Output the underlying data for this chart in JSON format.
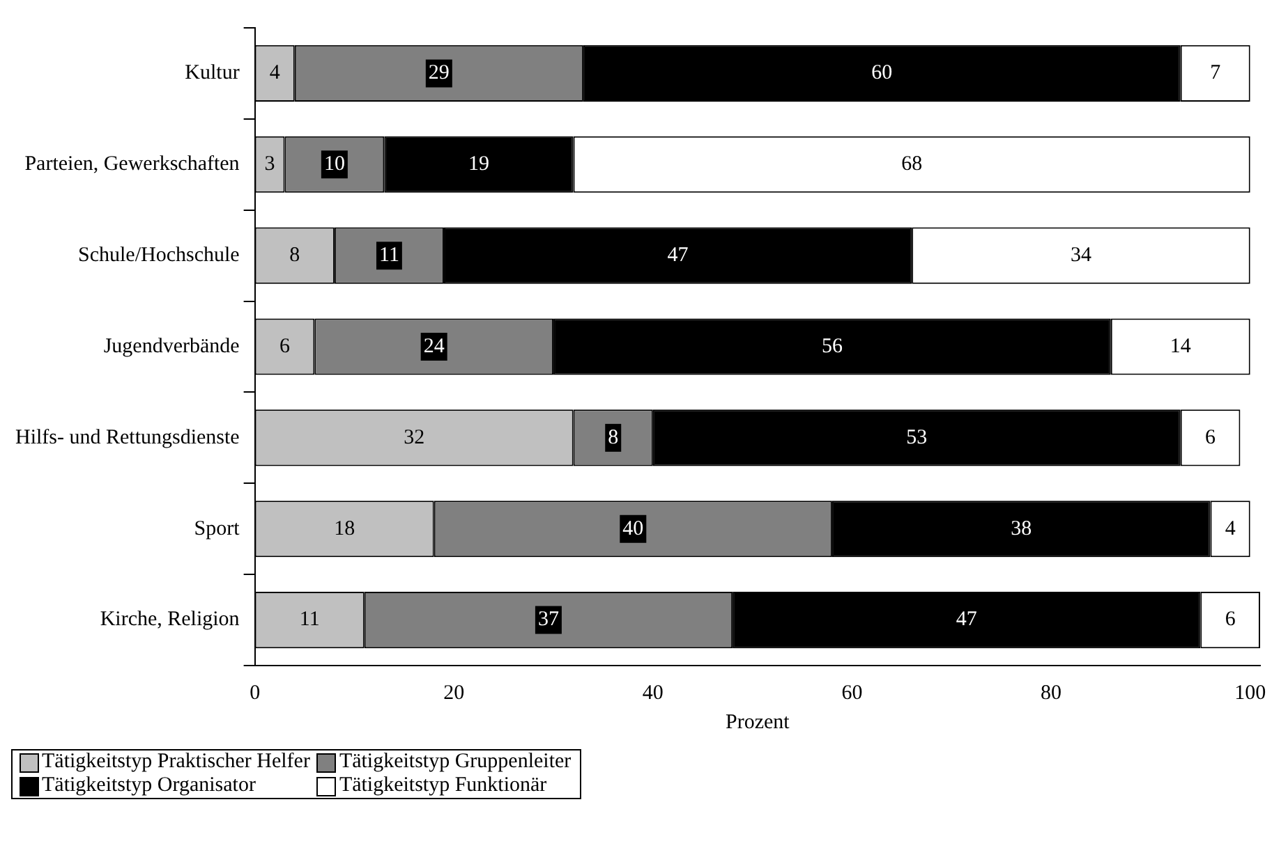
{
  "chart_data": {
    "type": "bar",
    "orientation": "horizontal",
    "stacked": true,
    "xlabel": "Prozent",
    "categories": [
      "Kultur",
      "Parteien, Gewerkschaften",
      "Schule/Hochschule",
      "Jugendverbände",
      "Hilfs- und Rettungsdienste",
      "Sport",
      "Kirche, Religion"
    ],
    "series": [
      {
        "name": "Tätigkeitstyp Praktischer Helfer",
        "color": "#c0c0c0",
        "values": [
          4,
          3,
          8,
          6,
          32,
          18,
          11
        ]
      },
      {
        "name": "Tätigkeitstyp Gruppenleiter",
        "color": "#808080",
        "values": [
          29,
          10,
          11,
          24,
          8,
          40,
          37
        ]
      },
      {
        "name": "Tätigkeitstyp Organisator",
        "color": "#000000",
        "values": [
          60,
          19,
          47,
          56,
          53,
          38,
          47
        ]
      },
      {
        "name": "Tätigkeitstyp Funktionär",
        "color": "#ffffff",
        "values": [
          7,
          68,
          34,
          14,
          6,
          4,
          6
        ]
      }
    ],
    "xlim": [
      0,
      101
    ],
    "xticks": [
      0,
      20,
      40,
      60,
      80,
      100
    ],
    "grid": false,
    "legend": "bottom left",
    "data_labels": true
  }
}
